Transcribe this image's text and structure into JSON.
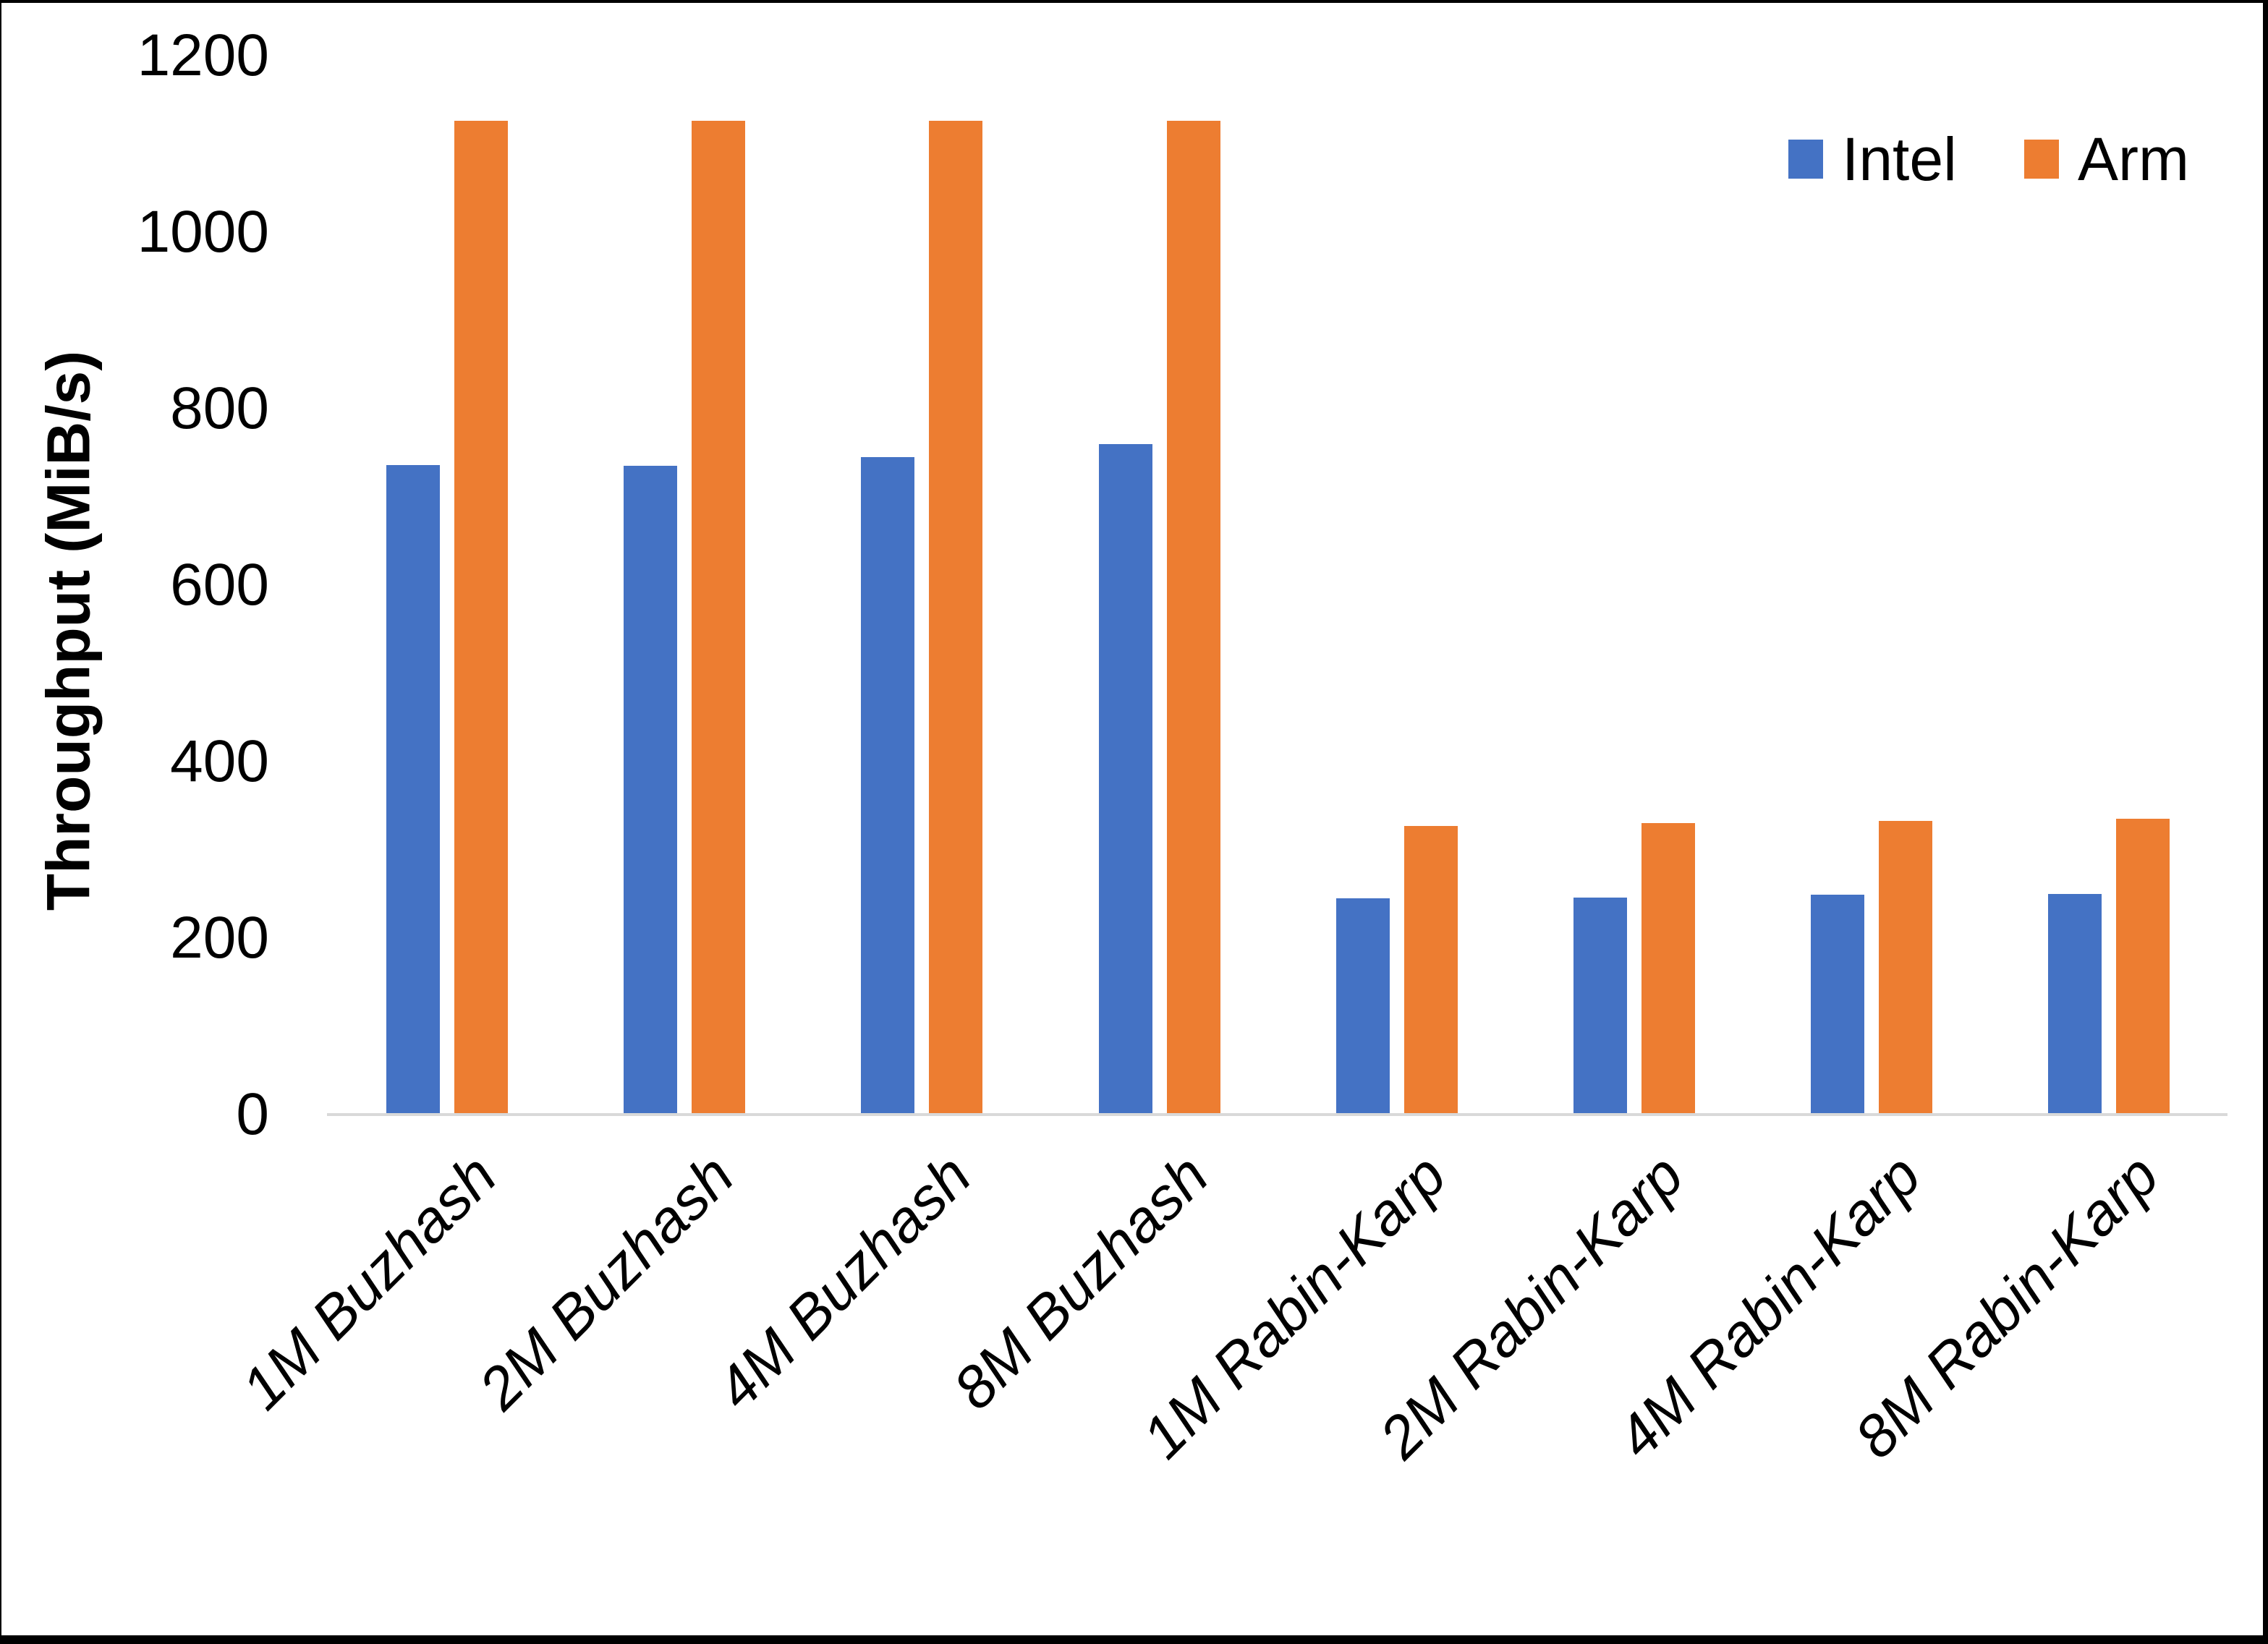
{
  "chart_data": {
    "type": "bar",
    "title": "",
    "xlabel": "",
    "ylabel": "Throughput (MiB/s)",
    "categories": [
      "1M Buzhash",
      "2M Buzhash",
      "4M Buzhash",
      "8M Buzhash",
      "1M Rabin-Karp",
      "2M Rabin-Karp",
      "4M Rabin-Karp",
      "8M Rabin-Karp"
    ],
    "series": [
      {
        "name": "Intel",
        "color": "#4472C4",
        "values": [
          736,
          735,
          745,
          760,
          245,
          246,
          249,
          250
        ]
      },
      {
        "name": "Arm",
        "color": "#ED7D31",
        "values": [
          1126,
          1126,
          1126,
          1126,
          327,
          330,
          333,
          335
        ]
      }
    ],
    "ylim": [
      0,
      1200
    ],
    "yticks": [
      0,
      200,
      400,
      600,
      800,
      1000,
      1200
    ],
    "grid": false,
    "legend_position": "top-right",
    "axis_line_color": "#D9D9D9",
    "category_label_rotation_deg": 45,
    "category_label_style": "italic"
  }
}
